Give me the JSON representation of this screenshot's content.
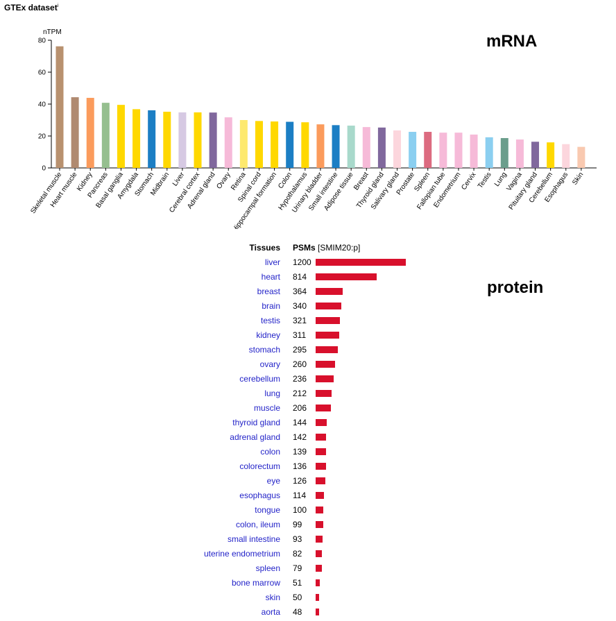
{
  "page": {
    "title": "GTEx dataset",
    "title_info_marker": "i",
    "mrna_label": "mRNA",
    "protein_label": "protein"
  },
  "chart_data": [
    {
      "type": "bar",
      "ylabel": "nTPM",
      "ylim": [
        0,
        80
      ],
      "yticks": [
        0,
        20,
        40,
        60,
        80
      ],
      "grid": false,
      "categories": [
        "Skeletal muscle",
        "Heart muscle",
        "Kidney",
        "Pancreas",
        "Basal ganglia",
        "Amygdala",
        "Stomach",
        "Midbrain",
        "Liver",
        "Cerebral cortex",
        "Adrenal gland",
        "Ovary",
        "Retina",
        "Spinal cord",
        "Hippocampal formation",
        "Colon",
        "Hypothalamus",
        "Urinary bladder",
        "Small intestine",
        "Adipose tissue",
        "Breast",
        "Thyroid gland",
        "Salivary gland",
        "Prostate",
        "Spleen",
        "Fallopian tube",
        "Endometrium",
        "Cervix",
        "Testis",
        "Lung",
        "Vagina",
        "Pituitary gland",
        "Cerebellum",
        "Esophagus",
        "Skin"
      ],
      "values": [
        76.2,
        44.3,
        43.9,
        40.8,
        39.5,
        36.8,
        36.1,
        35.2,
        34.8,
        34.8,
        34.7,
        31.7,
        30.0,
        29.4,
        29.1,
        28.9,
        28.6,
        27.3,
        26.8,
        26.5,
        25.6,
        25.3,
        23.5,
        22.6,
        22.6,
        22.1,
        22.1,
        20.9,
        19.2,
        18.7,
        17.8,
        16.4,
        16.0,
        14.9,
        13.2
      ],
      "colors": [
        "#b8916f",
        "#b08a70",
        "#fb9b5c",
        "#95bf8f",
        "#ffd800",
        "#ffd800",
        "#1b7ec4",
        "#ffd800",
        "#d6c9e3",
        "#ffd800",
        "#80689d",
        "#f6bad8",
        "#fde96e",
        "#ffd800",
        "#ffd800",
        "#1b7ec4",
        "#ffd800",
        "#fb9b5c",
        "#1b7ec4",
        "#a8d9cb",
        "#f6bad8",
        "#80689d",
        "#fcd6dd",
        "#8bcff0",
        "#dc6b80",
        "#f6bad8",
        "#f6bad8",
        "#f6bad8",
        "#8bcff0",
        "#6b9e8c",
        "#f6bad8",
        "#80689d",
        "#ffd800",
        "#fcd6dd",
        "#f9c9b0"
      ]
    },
    {
      "type": "table",
      "columns": [
        "Tissues",
        "PSMs",
        "[SMIM20:p]"
      ],
      "rows": [
        {
          "tissue": "liver",
          "psms": 1200
        },
        {
          "tissue": "heart",
          "psms": 814
        },
        {
          "tissue": "breast",
          "psms": 364
        },
        {
          "tissue": "brain",
          "psms": 340
        },
        {
          "tissue": "testis",
          "psms": 321
        },
        {
          "tissue": "kidney",
          "psms": 311
        },
        {
          "tissue": "stomach",
          "psms": 295
        },
        {
          "tissue": "ovary",
          "psms": 260
        },
        {
          "tissue": "cerebellum",
          "psms": 236
        },
        {
          "tissue": "lung",
          "psms": 212
        },
        {
          "tissue": "muscle",
          "psms": 206
        },
        {
          "tissue": "thyroid gland",
          "psms": 144
        },
        {
          "tissue": "adrenal gland",
          "psms": 142
        },
        {
          "tissue": "colon",
          "psms": 139
        },
        {
          "tissue": "colorectum",
          "psms": 136
        },
        {
          "tissue": "eye",
          "psms": 126
        },
        {
          "tissue": "esophagus",
          "psms": 114
        },
        {
          "tissue": "tongue",
          "psms": 100
        },
        {
          "tissue": "colon, ileum",
          "psms": 99
        },
        {
          "tissue": "small intestine",
          "psms": 93
        },
        {
          "tissue": "uterine endometrium",
          "psms": 82
        },
        {
          "tissue": "spleen",
          "psms": 79
        },
        {
          "tissue": "bone marrow",
          "psms": 51
        },
        {
          "tissue": "skin",
          "psms": 50
        },
        {
          "tissue": "aorta",
          "psms": 48
        }
      ],
      "bar_color": "#d8102c",
      "link_color": "#2323c8"
    }
  ]
}
